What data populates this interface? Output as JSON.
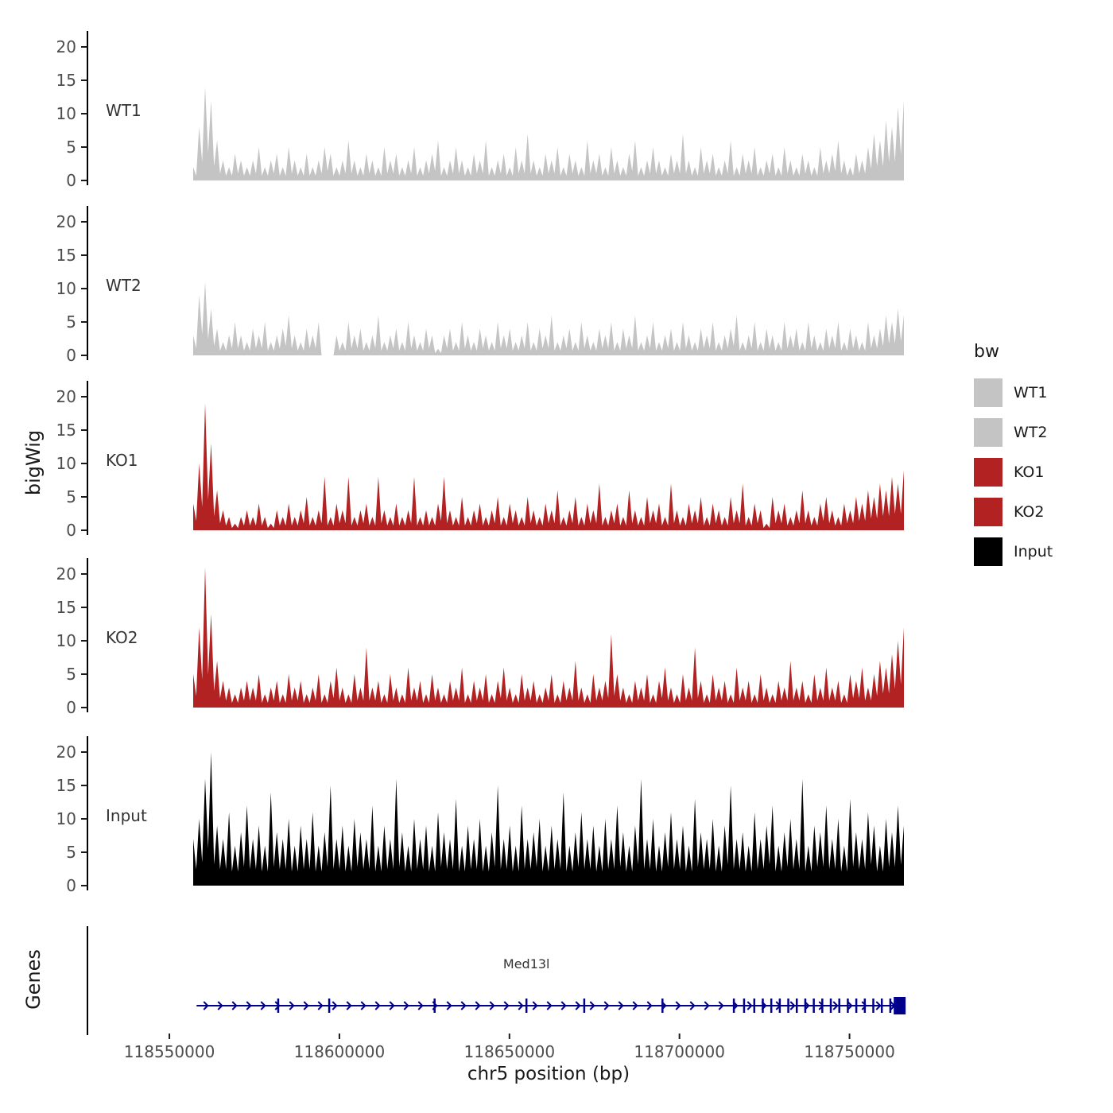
{
  "figure": {
    "ylabel": "bigWig",
    "genes_label": "Genes",
    "xlabel": "chr5 position (bp)"
  },
  "legend": {
    "title": "bw",
    "entries": [
      {
        "label": "WT1",
        "color": "#c4c4c4"
      },
      {
        "label": "WT2",
        "color": "#c4c4c4"
      },
      {
        "label": "KO1",
        "color": "#b22222"
      },
      {
        "label": "KO2",
        "color": "#b22222"
      },
      {
        "label": "Input",
        "color": "#000000"
      }
    ]
  },
  "chart_data": {
    "type": "area",
    "title": "",
    "xlabel": "chr5 position (bp)",
    "ylabel": "bigWig",
    "x_domain": [
      118557000,
      118766000
    ],
    "x_ticks": [
      118550000,
      118600000,
      118650000,
      118700000,
      118750000
    ],
    "y_ticks": [
      0,
      5,
      10,
      15,
      20
    ],
    "ylim": [
      0,
      22
    ],
    "grid": false,
    "legend_position": "right",
    "tracks": [
      {
        "name": "WT1",
        "color": "#c4c4c4",
        "values": [
          2,
          8,
          14,
          12,
          6,
          3,
          2,
          4,
          3,
          2,
          3,
          5,
          2,
          3,
          4,
          2,
          5,
          3,
          2,
          4,
          2,
          3,
          5,
          4,
          2,
          3,
          6,
          3,
          2,
          4,
          3,
          2,
          5,
          3,
          4,
          2,
          3,
          5,
          2,
          3,
          4,
          6,
          2,
          3,
          5,
          3,
          2,
          4,
          3,
          6,
          2,
          3,
          4,
          2,
          5,
          3,
          7,
          3,
          2,
          4,
          3,
          5,
          2,
          4,
          3,
          2,
          6,
          3,
          4,
          2,
          5,
          3,
          2,
          4,
          6,
          2,
          3,
          5,
          3,
          2,
          4,
          3,
          7,
          3,
          2,
          5,
          3,
          4,
          2,
          3,
          6,
          2,
          4,
          3,
          5,
          2,
          3,
          4,
          2,
          5,
          3,
          2,
          4,
          3,
          2,
          5,
          3,
          4,
          6,
          3,
          2,
          4,
          3,
          5,
          7,
          6,
          9,
          8,
          11,
          12
        ]
      },
      {
        "name": "WT2",
        "color": "#c4c4c4",
        "values": [
          3,
          9,
          11,
          7,
          4,
          2,
          3,
          5,
          3,
          2,
          4,
          3,
          5,
          2,
          3,
          4,
          6,
          3,
          2,
          4,
          3,
          5,
          0,
          0,
          3,
          2,
          5,
          3,
          4,
          2,
          3,
          6,
          2,
          3,
          4,
          2,
          5,
          3,
          2,
          4,
          3,
          1,
          3,
          4,
          2,
          5,
          3,
          2,
          4,
          3,
          2,
          5,
          3,
          4,
          2,
          3,
          5,
          2,
          4,
          3,
          6,
          2,
          3,
          4,
          2,
          5,
          3,
          2,
          4,
          3,
          5,
          2,
          4,
          3,
          6,
          2,
          3,
          5,
          2,
          3,
          4,
          2,
          5,
          3,
          2,
          4,
          3,
          5,
          2,
          3,
          4,
          6,
          2,
          3,
          5,
          2,
          4,
          3,
          2,
          5,
          3,
          4,
          2,
          5,
          3,
          2,
          4,
          3,
          5,
          2,
          4,
          3,
          2,
          5,
          3,
          4,
          6,
          5,
          7,
          6
        ]
      },
      {
        "name": "KO1",
        "color": "#b22222",
        "values": [
          4,
          10,
          19,
          13,
          6,
          3,
          2,
          1,
          2,
          3,
          2,
          4,
          2,
          1,
          3,
          2,
          4,
          2,
          3,
          5,
          2,
          3,
          8,
          2,
          4,
          3,
          8,
          2,
          3,
          4,
          2,
          8,
          3,
          2,
          4,
          2,
          3,
          8,
          2,
          3,
          2,
          4,
          8,
          3,
          2,
          5,
          2,
          3,
          4,
          2,
          3,
          5,
          2,
          4,
          3,
          2,
          5,
          3,
          2,
          4,
          3,
          6,
          2,
          3,
          5,
          2,
          4,
          3,
          7,
          2,
          3,
          4,
          2,
          6,
          3,
          2,
          5,
          3,
          4,
          2,
          7,
          3,
          2,
          4,
          3,
          5,
          2,
          4,
          3,
          2,
          5,
          3,
          7,
          2,
          4,
          3,
          1,
          5,
          3,
          4,
          2,
          3,
          6,
          3,
          2,
          4,
          5,
          3,
          2,
          4,
          3,
          5,
          4,
          6,
          5,
          7,
          6,
          8,
          7,
          9
        ]
      },
      {
        "name": "KO2",
        "color": "#b22222",
        "values": [
          5,
          12,
          21,
          14,
          7,
          4,
          3,
          2,
          3,
          4,
          3,
          5,
          2,
          3,
          4,
          2,
          5,
          3,
          4,
          2,
          3,
          5,
          2,
          4,
          6,
          3,
          2,
          5,
          3,
          9,
          3,
          4,
          2,
          5,
          3,
          2,
          6,
          3,
          4,
          2,
          5,
          3,
          2,
          4,
          3,
          6,
          2,
          4,
          3,
          5,
          2,
          4,
          6,
          3,
          2,
          5,
          3,
          4,
          2,
          3,
          5,
          2,
          4,
          3,
          7,
          3,
          2,
          5,
          3,
          4,
          11,
          5,
          3,
          2,
          4,
          3,
          5,
          2,
          4,
          6,
          3,
          2,
          5,
          3,
          9,
          4,
          2,
          5,
          3,
          4,
          2,
          6,
          3,
          4,
          2,
          5,
          3,
          2,
          4,
          3,
          7,
          3,
          4,
          2,
          5,
          3,
          6,
          3,
          4,
          2,
          5,
          4,
          6,
          3,
          5,
          7,
          6,
          8,
          10,
          12
        ]
      },
      {
        "name": "Input",
        "color": "#000000",
        "values": [
          7,
          10,
          16,
          20,
          9,
          7,
          11,
          6,
          8,
          12,
          7,
          9,
          6,
          14,
          8,
          7,
          10,
          6,
          9,
          7,
          11,
          6,
          8,
          15,
          7,
          9,
          6,
          10,
          8,
          7,
          12,
          6,
          9,
          7,
          16,
          8,
          6,
          10,
          7,
          9,
          6,
          11,
          8,
          7,
          13,
          6,
          9,
          7,
          10,
          6,
          8,
          15,
          7,
          9,
          6,
          12,
          7,
          8,
          10,
          6,
          9,
          7,
          14,
          6,
          8,
          11,
          7,
          9,
          6,
          10,
          7,
          12,
          8,
          6,
          9,
          16,
          7,
          10,
          6,
          8,
          11,
          7,
          9,
          6,
          13,
          8,
          7,
          10,
          6,
          9,
          15,
          7,
          8,
          6,
          11,
          7,
          9,
          12,
          6,
          8,
          10,
          7,
          16,
          6,
          9,
          8,
          12,
          7,
          10,
          6,
          13,
          8,
          7,
          11,
          9,
          6,
          10,
          8,
          12,
          9
        ]
      }
    ],
    "gene": {
      "name": "Med13l",
      "color": "#00008b",
      "strand": "+",
      "start": 118558000,
      "end": 118766000,
      "label_pos": 118655000,
      "exons": [
        118582000,
        118597000,
        118628000,
        118655000,
        118672000,
        118695000,
        118716000,
        118719000,
        118722000,
        118724500,
        118727000,
        118729500,
        118732000,
        118734500,
        118737000,
        118739500,
        118742000,
        118744500,
        118747000,
        118749500,
        118752000,
        118754500,
        118757000,
        118759500,
        118762000
      ],
      "end_box": {
        "start": 118763000,
        "end": 118766500
      }
    }
  }
}
